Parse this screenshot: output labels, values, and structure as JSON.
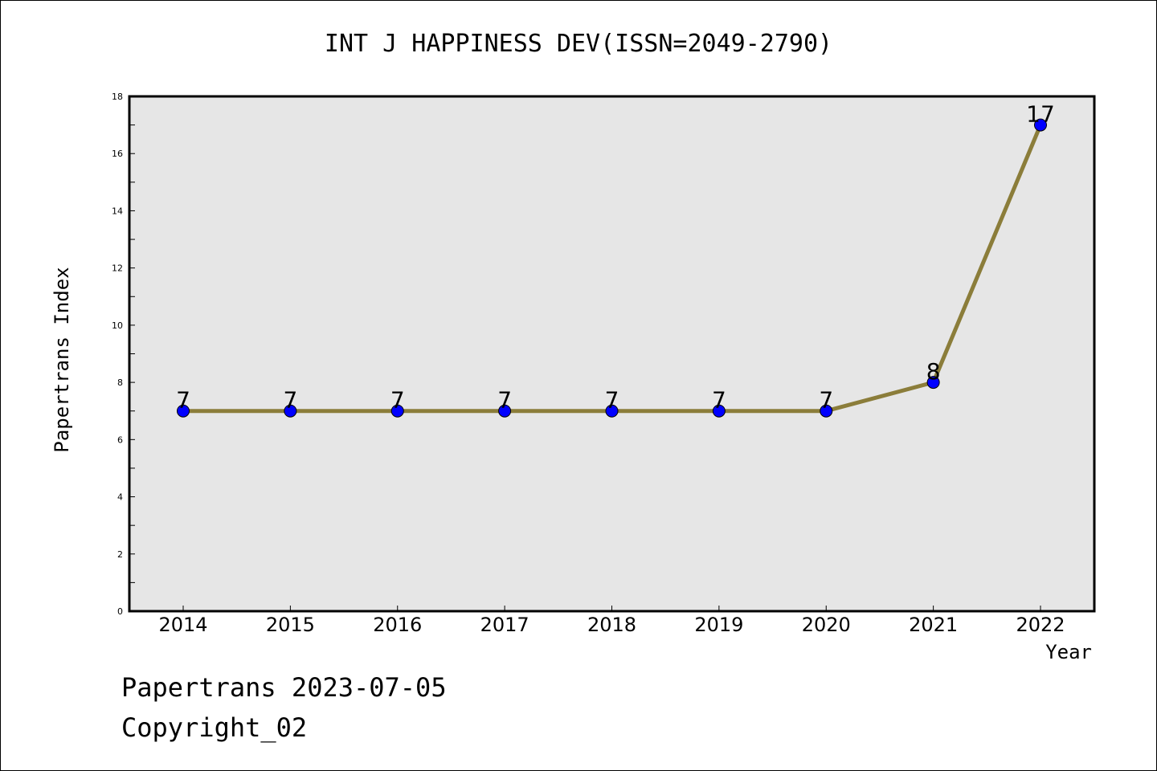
{
  "chart_data": {
    "type": "line",
    "title": "INT J HAPPINESS DEV(ISSN=2049-2790)",
    "xlabel": "Year",
    "ylabel": "Papertrans Index",
    "categories": [
      "2014",
      "2015",
      "2016",
      "2017",
      "2018",
      "2019",
      "2020",
      "2021",
      "2022"
    ],
    "series": [
      {
        "values": [
          7,
          7,
          7,
          7,
          7,
          7,
          7,
          8,
          17
        ]
      }
    ],
    "ylim": [
      0,
      18
    ],
    "yticks": [
      "0",
      "2",
      "4",
      "6",
      "8",
      "10",
      "12",
      "14",
      "16",
      "18"
    ],
    "data_labels": [
      "7",
      "7",
      "7",
      "7",
      "7",
      "7",
      "7",
      "8",
      "17"
    ],
    "grid": false,
    "colors": {
      "line": "#8b7d3a",
      "marker": "#0000ff",
      "plot_bg": "#e6e6e6"
    }
  },
  "footer": {
    "line1": "Papertrans 2023-07-05",
    "line2": "Copyright_02"
  }
}
